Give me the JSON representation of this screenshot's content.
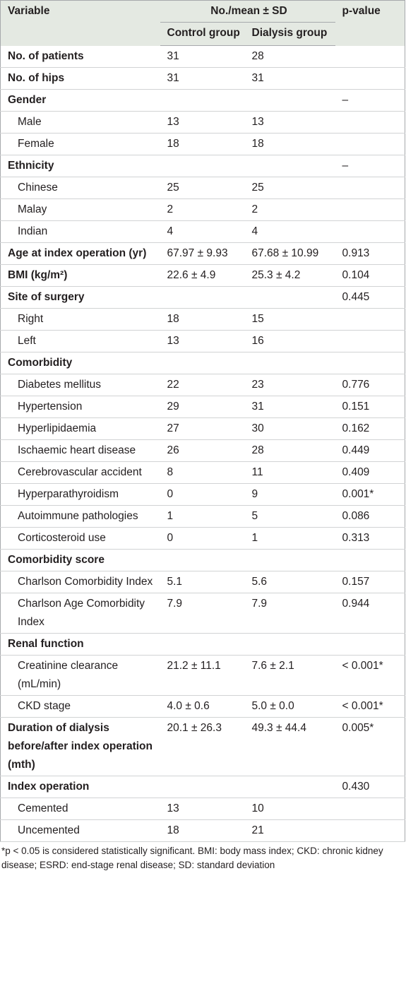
{
  "table": {
    "header": {
      "variable": "Variable",
      "span": "No./mean ± SD",
      "p": "p-value",
      "control": "Control group",
      "dialysis": "Dialysis group"
    },
    "groups": [
      {
        "label": "No. of patients",
        "values": [
          "31",
          "28",
          null
        ]
      },
      {
        "label": "No. of hips",
        "values": [
          "31",
          "31",
          null
        ]
      },
      {
        "label": "Gender",
        "values": [
          null,
          null,
          "–"
        ],
        "items": [
          {
            "label": "Male",
            "values": [
              "13",
              "13",
              null
            ]
          },
          {
            "label": "Female",
            "values": [
              "18",
              "18",
              null
            ]
          }
        ]
      },
      {
        "label": "Ethnicity",
        "values": [
          null,
          null,
          "–"
        ],
        "items": [
          {
            "label": "Chinese",
            "values": [
              "25",
              "25",
              null
            ]
          },
          {
            "label": "Malay",
            "values": [
              "2",
              "2",
              null
            ]
          },
          {
            "label": "Indian",
            "values": [
              "4",
              "4",
              null
            ]
          }
        ]
      },
      {
        "label": "Age at index operation (yr)",
        "values": [
          "67.97 ± 9.93",
          "67.68 ± 10.99",
          "0.913"
        ]
      },
      {
        "label": "BMI (kg/m²)",
        "values": [
          "22.6 ± 4.9",
          "25.3 ± 4.2",
          "0.104"
        ]
      },
      {
        "label": "Site of surgery",
        "values": [
          null,
          null,
          "0.445"
        ],
        "items": [
          {
            "label": "Right",
            "values": [
              "18",
              "15",
              null
            ]
          },
          {
            "label": "Left",
            "values": [
              "13",
              "16",
              null
            ]
          }
        ]
      },
      {
        "label": "Comorbidity",
        "values": [
          null,
          null,
          null
        ],
        "items": [
          {
            "label": "Diabetes mellitus",
            "values": [
              "22",
              "23",
              "0.776"
            ]
          },
          {
            "label": "Hypertension",
            "values": [
              "29",
              "31",
              "0.151"
            ]
          },
          {
            "label": "Hyperlipidaemia",
            "values": [
              "27",
              "30",
              "0.162"
            ]
          },
          {
            "label": "Ischaemic heart disease",
            "values": [
              "26",
              "28",
              "0.449"
            ]
          },
          {
            "label": "Cerebrovascular accident",
            "values": [
              "8",
              "11",
              "0.409"
            ]
          },
          {
            "label": "Hyperparathyroidism",
            "values": [
              "0",
              "9",
              "0.001*"
            ]
          },
          {
            "label": "Autoimmune pathologies",
            "values": [
              "1",
              "5",
              "0.086"
            ]
          },
          {
            "label": "Corticosteroid use",
            "values": [
              "0",
              "1",
              "0.313"
            ]
          }
        ]
      },
      {
        "label": "Comorbidity score",
        "values": [
          null,
          null,
          null
        ],
        "items": [
          {
            "label": "Charlson Comorbidity Index",
            "values": [
              "5.1",
              "5.6",
              "0.157"
            ]
          },
          {
            "label": "Charlson Age Comorbidity Index",
            "values": [
              "7.9",
              "7.9",
              "0.944"
            ]
          }
        ]
      },
      {
        "label": "Renal function",
        "values": [
          null,
          null,
          null
        ],
        "items": [
          {
            "label": "Creatinine clearance (mL/min)",
            "values": [
              "21.2 ± 11.1",
              "7.6 ± 2.1",
              "< 0.001*"
            ]
          },
          {
            "label": "CKD stage",
            "values": [
              "4.0 ± 0.6",
              "5.0 ± 0.0",
              "< 0.001*"
            ]
          }
        ]
      },
      {
        "label": "Duration of dialysis before/after index operation (mth)",
        "values": [
          "20.1 ± 26.3",
          "49.3 ± 44.4",
          "0.005*"
        ]
      },
      {
        "label": "Index operation",
        "values": [
          null,
          null,
          "0.430"
        ],
        "items": [
          {
            "label": "Cemented",
            "values": [
              "13",
              "10",
              null
            ]
          },
          {
            "label": "Uncemented",
            "values": [
              "18",
              "21",
              null
            ]
          }
        ]
      }
    ],
    "footnote": "*p < 0.05 is considered statistically significant. BMI: body mass index; CKD: chronic kidney disease; ESRD: end-stage renal disease; SD: standard deviation"
  }
}
